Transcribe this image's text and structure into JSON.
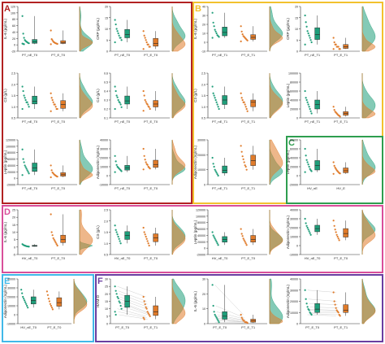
{
  "colors": {
    "green": "#1f9e7a",
    "orange": "#e07b2a",
    "frame_A": "#b22222",
    "frame_B": "#f2c12e",
    "frame_C": "#2e9e4f",
    "frame_D": "#d94f9a",
    "frame_E": "#41b8e8",
    "frame_F": "#6a3ea1"
  },
  "panels": [
    {
      "label": "A",
      "color": "frame_A"
    },
    {
      "label": "B",
      "color": "frame_B"
    },
    {
      "label": "C",
      "color": "frame_C"
    },
    {
      "label": "D",
      "color": "frame_D"
    },
    {
      "label": "E",
      "color": "frame_E"
    },
    {
      "label": "F",
      "color": "frame_F"
    }
  ],
  "chart_data": [
    {
      "panel": "A",
      "type": "scatter",
      "ylabel": "IL-6 (pg/mL)",
      "ylim": [
        -20,
        120
      ],
      "yticks": [
        "-20",
        "0",
        "20",
        "40",
        "60",
        "80",
        "100",
        "120"
      ],
      "categories": [
        "PT_nE_T0",
        "PT_E_T0"
      ],
      "series": [
        {
          "group": "nE",
          "values": [
            90,
            35,
            22,
            15,
            12,
            10,
            8,
            6,
            5,
            4,
            3,
            2
          ]
        },
        {
          "group": "E",
          "values": [
            45,
            18,
            14,
            10,
            8,
            6,
            5,
            4,
            3,
            2
          ]
        }
      ]
    },
    {
      "panel": "A",
      "type": "scatter",
      "ylabel": "CRP (µg/mL)",
      "ylim": [
        0,
        20
      ],
      "yticks": [
        "0",
        "5",
        "10",
        "15",
        "20"
      ],
      "categories": [
        "PT_nE_T0",
        "PT_E_T0"
      ],
      "series": [
        {
          "group": "nE",
          "values": [
            14,
            12,
            10,
            9,
            8,
            7,
            6,
            6,
            5,
            4
          ]
        },
        {
          "group": "E",
          "values": [
            9,
            7,
            6,
            5,
            4,
            3,
            3,
            2,
            2,
            1
          ]
        }
      ]
    },
    {
      "panel": "A",
      "type": "scatter",
      "ylabel": "C3 (g/L)",
      "ylim": [
        0.5,
        2.5
      ],
      "yticks": [
        "0.5",
        "1.0",
        "1.5",
        "2.0",
        "2.5"
      ],
      "categories": [
        "PT_nE_T0",
        "PT_E_T0"
      ],
      "series": [
        {
          "group": "nE",
          "values": [
            1.9,
            1.7,
            1.5,
            1.4,
            1.3,
            1.2,
            1.2,
            1.1,
            1.0,
            0.9
          ]
        },
        {
          "group": "E",
          "values": [
            1.6,
            1.4,
            1.3,
            1.2,
            1.1,
            1.1,
            1.0,
            0.9,
            0.9,
            0.8
          ]
        }
      ]
    },
    {
      "panel": "A",
      "type": "scatter",
      "ylabel": "C4 (g/L)",
      "ylim": [
        0.1,
        0.6
      ],
      "yticks": [
        "0.1",
        "0.2",
        "0.3",
        "0.4",
        "0.5",
        "0.6"
      ],
      "categories": [
        "PT_nE_T0",
        "PT_E_T0"
      ],
      "series": [
        {
          "group": "nE",
          "values": [
            0.45,
            0.4,
            0.35,
            0.33,
            0.3,
            0.28,
            0.27,
            0.25,
            0.22,
            0.2
          ]
        },
        {
          "group": "E",
          "values": [
            0.4,
            0.35,
            0.3,
            0.28,
            0.26,
            0.25,
            0.23,
            0.22,
            0.2,
            0.18
          ]
        }
      ]
    },
    {
      "panel": "A",
      "type": "scatter",
      "ylabel": "Leptin (pg/mL)",
      "ylim": [
        -20000,
        120000
      ],
      "yticks": [
        "-20000",
        "0",
        "20000",
        "40000",
        "60000",
        "80000",
        "100000",
        "120000"
      ],
      "categories": [
        "PT_nE_T0",
        "PT_E_T0"
      ],
      "series": [
        {
          "group": "nE",
          "values": [
            90000,
            60000,
            50000,
            40000,
            35000,
            30000,
            25000,
            20000,
            15000,
            10000
          ]
        },
        {
          "group": "E",
          "values": [
            40000,
            25000,
            18000,
            15000,
            12000,
            10000,
            8000,
            6000,
            5000,
            3000
          ]
        }
      ]
    },
    {
      "panel": "A",
      "type": "scatter",
      "ylabel": "Adiponectin (ng/mL)",
      "ylim": [
        -10000,
        40000
      ],
      "yticks": [
        "-10000",
        "0",
        "10000",
        "20000",
        "30000",
        "40000"
      ],
      "categories": [
        "PT_nE_T0",
        "PT_E_T0"
      ],
      "series": [
        {
          "group": "nE",
          "values": [
            22000,
            16000,
            12000,
            10000,
            9000,
            8000,
            7000,
            6000,
            5000,
            4000
          ]
        },
        {
          "group": "E",
          "values": [
            30000,
            22000,
            18000,
            15000,
            13000,
            12000,
            10000,
            9000,
            8000,
            7000
          ]
        }
      ]
    },
    {
      "panel": "B",
      "type": "scatter",
      "ylabel": "IL-6 (pg/mL)",
      "ylim": [
        -10,
        40
      ],
      "yticks": [
        "-10",
        "0",
        "10",
        "20",
        "30",
        "40"
      ],
      "categories": [
        "PT_nE_T1",
        "PT_E_T1"
      ],
      "series": [
        {
          "group": "nE",
          "values": [
            33,
            22,
            18,
            14,
            12,
            10,
            8,
            7,
            6,
            5
          ]
        },
        {
          "group": "E",
          "values": [
            18,
            12,
            9,
            7,
            6,
            5,
            4,
            3,
            2,
            1
          ]
        }
      ]
    },
    {
      "panel": "B",
      "type": "scatter",
      "ylabel": "CRP (µg/mL)",
      "ylim": [
        0,
        20
      ],
      "yticks": [
        "0",
        "5",
        "10",
        "15",
        "20"
      ],
      "categories": [
        "PT_nE_T1",
        "PT_E_T1"
      ],
      "series": [
        {
          "group": "nE",
          "values": [
            16,
            13,
            11,
            9,
            8,
            7,
            6,
            5,
            4,
            3
          ]
        },
        {
          "group": "E",
          "values": [
            6,
            4,
            3,
            3,
            2,
            2,
            2,
            1,
            1,
            1
          ]
        }
      ]
    },
    {
      "panel": "B",
      "type": "scatter",
      "ylabel": "C3 (g/L)",
      "ylim": [
        0.5,
        2.5
      ],
      "yticks": [
        "0.5",
        "1.0",
        "1.5",
        "2.0",
        "2.5"
      ],
      "categories": [
        "PT_nE_T1",
        "PT_E_T1"
      ],
      "series": [
        {
          "group": "nE",
          "values": [
            1.9,
            1.6,
            1.5,
            1.4,
            1.3,
            1.2,
            1.1,
            1.0,
            0.9
          ]
        },
        {
          "group": "E",
          "values": [
            1.6,
            1.4,
            1.3,
            1.2,
            1.2,
            1.1,
            1.0,
            0.9,
            0.8
          ]
        }
      ]
    },
    {
      "panel": "B",
      "type": "scatter",
      "ylabel": "Leptin (pg/mL)",
      "ylim": [
        0,
        100000
      ],
      "yticks": [
        "0",
        "20000",
        "40000",
        "60000",
        "80000",
        "100000"
      ],
      "categories": [
        "PT_nE_T1",
        "PT_E_T1"
      ],
      "series": [
        {
          "group": "nE",
          "values": [
            60000,
            45000,
            40000,
            35000,
            30000,
            25000,
            20000,
            15000,
            10000
          ]
        },
        {
          "group": "E",
          "values": [
            25000,
            18000,
            14000,
            12000,
            10000,
            8000,
            6000,
            5000,
            3000
          ]
        }
      ]
    },
    {
      "panel": "B",
      "type": "scatter",
      "ylabel": "Adiponectin (ng/mL)",
      "ylim": [
        0,
        30000
      ],
      "yticks": [
        "0",
        "10000",
        "20000",
        "30000"
      ],
      "categories": [
        "PT_nE_T1",
        "PT_E_T1"
      ],
      "series": [
        {
          "group": "nE",
          "values": [
            18000,
            14000,
            12000,
            10000,
            9000,
            8000,
            7000,
            6000
          ]
        },
        {
          "group": "E",
          "values": [
            26000,
            22000,
            19000,
            17000,
            15000,
            13000,
            12000,
            10000
          ]
        }
      ]
    },
    {
      "panel": "C",
      "type": "scatter",
      "ylabel": "Leptin (pg/mL)",
      "ylim": [
        -20000,
        80000
      ],
      "yticks": [
        "-20000",
        "0",
        "20000",
        "40000",
        "60000",
        "80000"
      ],
      "categories": [
        "HV_nE",
        "HV_E"
      ],
      "series": [
        {
          "group": "nE",
          "values": [
            60000,
            45000,
            35000,
            30000,
            25000,
            20000,
            15000,
            12000,
            10000,
            8000
          ]
        },
        {
          "group": "E",
          "values": [
            30000,
            22000,
            18000,
            15000,
            12000,
            10000,
            8000,
            6000,
            5000,
            4000
          ]
        }
      ]
    },
    {
      "panel": "D",
      "type": "scatter",
      "ylabel": "IL-6 (pg/mL)",
      "ylim": [
        -5,
        25
      ],
      "yticks": [
        "-5",
        "0",
        "5",
        "10",
        "15",
        "20",
        "25"
      ],
      "categories": [
        "HV_nE_T0",
        "PT_E_T0"
      ],
      "series": [
        {
          "group": "nE",
          "values": [
            2,
            1.5,
            1.2,
            1,
            0.8,
            0.6,
            0.5,
            0.4,
            0.3
          ]
        },
        {
          "group": "E",
          "values": [
            22,
            10,
            8,
            6,
            5,
            4,
            3,
            2,
            1
          ]
        }
      ]
    },
    {
      "panel": "D",
      "type": "scatter",
      "ylabel": "C3 (g/L)",
      "ylim": [
        0.5,
        2.5
      ],
      "yticks": [
        "0.5",
        "1.0",
        "1.5",
        "2.0",
        "2.5"
      ],
      "categories": [
        "HV_nE_T0",
        "PT_E_T0"
      ],
      "series": [
        {
          "group": "nE",
          "values": [
            1.8,
            1.6,
            1.5,
            1.4,
            1.3,
            1.2,
            1.1,
            1.0
          ]
        },
        {
          "group": "E",
          "values": [
            1.7,
            1.5,
            1.4,
            1.3,
            1.2,
            1.1,
            1.0,
            0.9
          ]
        }
      ]
    },
    {
      "panel": "D",
      "type": "scatter",
      "ylabel": "Leptin (pg/mL)",
      "ylim": [
        -20000,
        120000
      ],
      "yticks": [
        "-20000",
        "0",
        "20000",
        "40000",
        "60000",
        "80000",
        "100000",
        "120000"
      ],
      "categories": [
        "HV_nE_T0",
        "PT_E_T0"
      ],
      "series": [
        {
          "group": "nE",
          "values": [
            50000,
            40000,
            35000,
            30000,
            25000,
            20000,
            15000,
            10000
          ]
        },
        {
          "group": "E",
          "values": [
            60000,
            45000,
            38000,
            30000,
            25000,
            20000,
            15000,
            10000
          ]
        }
      ]
    },
    {
      "panel": "D",
      "type": "scatter",
      "ylabel": "Adiponectin (ng/mL)",
      "ylim": [
        -10000,
        40000
      ],
      "yticks": [
        "-10000",
        "0",
        "10000",
        "20000",
        "30000",
        "40000"
      ],
      "categories": [
        "HV_nE_T0",
        "PT_E_T0"
      ],
      "series": [
        {
          "group": "nE",
          "values": [
            30000,
            25000,
            22000,
            20000,
            18000,
            16000,
            14000,
            12000
          ]
        },
        {
          "group": "E",
          "values": [
            28000,
            22000,
            18000,
            15000,
            12000,
            10000,
            8000,
            6000
          ]
        }
      ]
    },
    {
      "panel": "E",
      "type": "scatter",
      "ylabel": "Adiponectin (ng/mL)",
      "ylim": [
        -10000,
        40000
      ],
      "yticks": [
        "-10000",
        "0",
        "10000",
        "20000",
        "30000",
        "40000"
      ],
      "categories": [
        "HV_nE_T0",
        "PT_E_T0"
      ],
      "series": [
        {
          "group": "nE",
          "values": [
            28000,
            24000,
            20000,
            18000,
            16000,
            14000,
            12000,
            10000,
            8000
          ]
        },
        {
          "group": "E",
          "values": [
            26000,
            22000,
            18000,
            15000,
            12000,
            10000,
            8000,
            6000
          ]
        }
      ]
    },
    {
      "panel": "F",
      "type": "scatter",
      "ylabel": "HAM-D",
      "ylim": [
        0,
        30
      ],
      "yticks": [
        "0",
        "5",
        "10",
        "15",
        "20",
        "25",
        "30"
      ],
      "categories": [
        "PT_E_T0",
        "PT_E_T1"
      ],
      "series": [
        {
          "group": "T0",
          "values": [
            25,
            22,
            20,
            18,
            17,
            15,
            14,
            12,
            10,
            8,
            6
          ]
        },
        {
          "group": "T1",
          "values": [
            18,
            15,
            13,
            11,
            10,
            8,
            7,
            6,
            5,
            4,
            3
          ]
        }
      ]
    },
    {
      "panel": "F",
      "type": "scatter",
      "ylabel": "IL-6 (pg/mL)",
      "ylim": [
        0,
        30
      ],
      "yticks": [
        "0",
        "10",
        "20",
        "30"
      ],
      "categories": [
        "PT_E_T0",
        "PT_E_T1"
      ],
      "series": [
        {
          "group": "T0",
          "values": [
            26,
            12,
            8,
            6,
            5,
            4,
            3,
            2,
            1
          ]
        },
        {
          "group": "T1",
          "values": [
            6,
            4,
            3,
            2,
            2,
            1,
            1,
            1,
            0.5
          ]
        }
      ]
    },
    {
      "panel": "F",
      "type": "scatter",
      "ylabel": "Adiponectin (ng/mL)",
      "ylim": [
        0,
        40000
      ],
      "yticks": [
        "0",
        "10000",
        "20000",
        "30000",
        "40000"
      ],
      "categories": [
        "PT_E_T0",
        "PT_E_T1"
      ],
      "series": [
        {
          "group": "T0",
          "values": [
            30000,
            22000,
            18000,
            15000,
            13000,
            12000,
            10000,
            9000,
            8000
          ]
        },
        {
          "group": "T1",
          "values": [
            28000,
            20000,
            17000,
            14000,
            12000,
            11000,
            10000,
            8000,
            7000
          ]
        }
      ]
    }
  ]
}
